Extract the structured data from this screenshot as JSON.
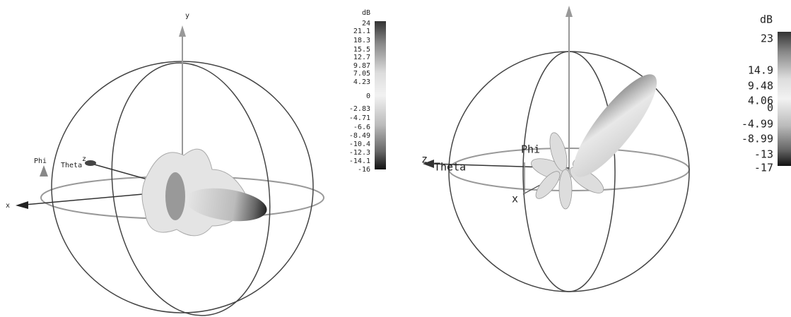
{
  "panels": [
    {
      "axes": {
        "y": "y",
        "phi": "Phi",
        "theta": "Theta",
        "z": "z",
        "x": "x"
      },
      "colorbar": {
        "unit": "dB",
        "ticks": [
          "24",
          "21.1",
          "18.3",
          "15.5",
          "12.7",
          "9.87",
          "7.05",
          "4.23",
          "0",
          "-2.83",
          "-4.71",
          "-6.6",
          "-8.49",
          "-10.4",
          "-12.3",
          "-14.1",
          "-16"
        ]
      }
    },
    {
      "axes": {
        "phi": "Phi",
        "theta": "Theta",
        "z": "z",
        "x": "x"
      },
      "colorbar": {
        "unit": "dB",
        "ticks": [
          "23",
          "14.9",
          "9.48",
          "4.06",
          "0",
          "-4.99",
          "-8.99",
          "-13",
          "-17"
        ]
      }
    }
  ]
}
